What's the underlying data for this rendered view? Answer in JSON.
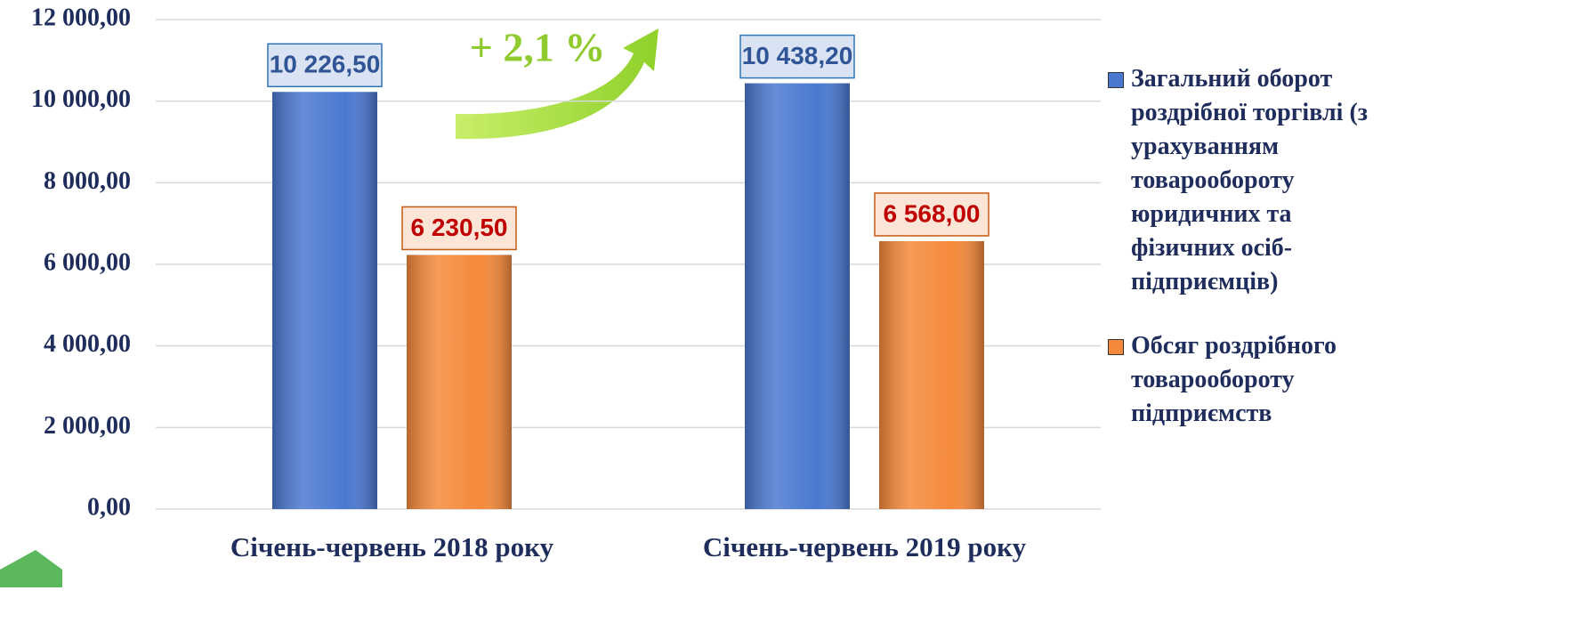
{
  "chart_data": {
    "type": "bar",
    "categories": [
      "Січень-червень 2018 року",
      "Січень-червень 2019 року"
    ],
    "series": [
      {
        "name": "Загальний оборот роздрібної торгівлі (з урахуванням товарообороту юридичних та фізичних осіб-підприємців)",
        "color": "#4a78d0",
        "values": [
          10226.5,
          10438.2
        ],
        "value_labels": [
          "10 226,50",
          "10 438,20"
        ]
      },
      {
        "name": "Обсяг роздрібного товарообороту підприємств",
        "color": "#f5893a",
        "values": [
          6230.5,
          6568.0
        ],
        "value_labels": [
          "6 230,50",
          "6 568,00"
        ]
      }
    ],
    "annotation": "+ 2,1 %",
    "ylim": [
      0,
      12000
    ],
    "yticks": [
      {
        "value": 0,
        "label": "0,00"
      },
      {
        "value": 2000,
        "label": "2 000,00"
      },
      {
        "value": 4000,
        "label": "4 000,00"
      },
      {
        "value": 6000,
        "label": "6 000,00"
      },
      {
        "value": 8000,
        "label": "8 000,00"
      },
      {
        "value": 10000,
        "label": "10 000,00"
      },
      {
        "value": 12000,
        "label": "12 000,00"
      }
    ],
    "grid": true,
    "legend": "right"
  }
}
